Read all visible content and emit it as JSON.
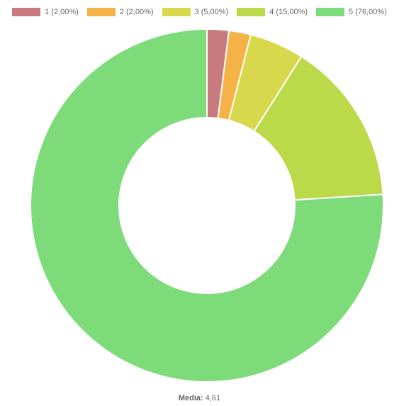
{
  "chart_data": {
    "type": "pie",
    "variant": "doughnut",
    "legend_position": "top",
    "categories": [
      "1 (2,00%)",
      "2 (2,00%)",
      "3 (5,00%)",
      "4 (15,00%)",
      "5 (76,00%)"
    ],
    "values": [
      2,
      2,
      5,
      15,
      76
    ],
    "colors": [
      "#c97a7e",
      "#f5b347",
      "#d8d84c",
      "#bcd94a",
      "#7edb7a"
    ],
    "footer": {
      "label": "Media:",
      "value": "4,61"
    }
  }
}
